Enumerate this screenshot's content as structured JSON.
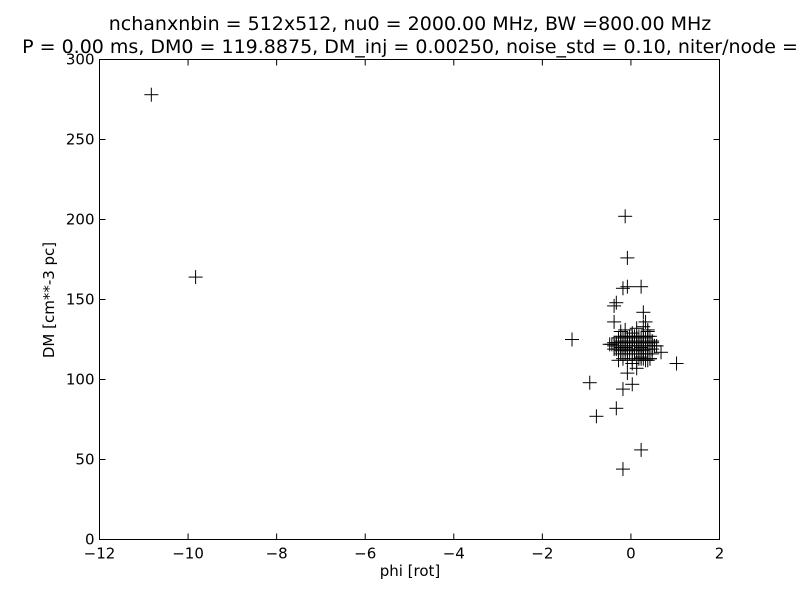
{
  "chart_data": {
    "type": "scatter",
    "title_line1": "nchanxnbin = 512x512, nu0 = 2000.00 MHz, BW =800.00 MHz",
    "title_line2": "P = 0.00 ms, DM0 = 119.8875, DM_inj = 0.00250, noise_std = 0.10, niter/node =",
    "xlabel": "phi [rot]",
    "ylabel": "DM [cm**-3 pc]",
    "xlim": [
      -12,
      2
    ],
    "ylim": [
      0,
      300
    ],
    "xticks": [
      -12,
      -10,
      -8,
      -6,
      -4,
      -2,
      0,
      2
    ],
    "xtick_labels": [
      "−12",
      "−10",
      "−8",
      "−6",
      "−4",
      "−2",
      "0",
      "2"
    ],
    "yticks": [
      0,
      50,
      100,
      150,
      200,
      250,
      300
    ],
    "ytick_labels": [
      "0",
      "50",
      "100",
      "150",
      "200",
      "250",
      "300"
    ],
    "marker": "+",
    "marker_color": "#000000",
    "grid": false,
    "series": [
      {
        "x": [
          -10.83,
          -9.83,
          -1.33,
          -0.93,
          -0.78,
          -0.33,
          -0.18,
          -0.18,
          -0.13,
          1.03,
          0.23,
          -0.38,
          -0.33,
          -0.38,
          -0.18,
          -0.08,
          0.23,
          0.28,
          0.33,
          0.38,
          0.43,
          0.48,
          0.53,
          0.68,
          -0.08,
          0.03,
          0.13,
          0.18,
          0.23,
          0.28,
          0.33,
          0.38,
          0.43,
          -0.48,
          -0.43,
          -0.38,
          -0.33,
          -0.28,
          -0.23,
          -0.18,
          -0.13,
          -0.08,
          -0.03,
          0.03,
          0.08,
          0.13,
          0.18,
          0.23,
          0.28,
          0.33,
          0.38,
          0.43,
          0.48,
          0.53,
          0.58,
          -0.38,
          -0.33,
          -0.28,
          -0.23,
          -0.18,
          -0.13,
          -0.08,
          -0.03,
          0.03,
          0.08,
          0.13,
          0.18,
          0.23,
          0.28,
          0.33,
          0.38,
          0.43,
          0.48,
          -0.38,
          -0.33,
          -0.28,
          -0.23,
          -0.18,
          -0.13,
          -0.08,
          -0.03,
          0.03,
          0.08,
          0.13,
          0.18,
          0.23,
          0.28,
          0.33,
          0.38,
          0.43,
          0.48,
          -0.28,
          -0.23,
          -0.18,
          -0.13,
          -0.08,
          -0.03,
          0.03,
          0.08,
          0.13,
          0.18,
          0.23,
          0.28,
          0.33,
          0.38,
          -0.23,
          -0.13,
          -0.03,
          0.08,
          0.18,
          0.28,
          0.38,
          0.48,
          -0.28,
          -0.18,
          -0.08,
          0.03,
          0.13,
          0.23,
          0.33,
          0.43,
          -0.23,
          -0.13,
          0.03,
          0.13,
          0.28,
          0.38,
          0.03,
          -0.08
        ],
        "y": [
          278,
          164,
          125,
          98,
          77,
          82,
          94,
          44,
          202,
          110,
          56,
          136,
          148,
          146,
          157,
          176,
          158,
          142,
          136,
          131,
          127,
          124,
          121,
          117,
          158,
          97,
          107,
          113,
          114,
          113,
          116,
          112,
          113,
          122,
          122,
          121,
          121,
          121,
          120,
          121,
          120,
          121,
          121,
          121,
          121,
          121,
          121,
          120,
          121,
          121,
          121,
          121,
          121,
          121,
          121,
          119,
          119,
          119,
          118,
          119,
          119,
          118,
          119,
          119,
          119,
          118,
          119,
          119,
          118,
          119,
          119,
          119,
          119,
          123,
          123,
          123,
          124,
          123,
          123,
          124,
          123,
          123,
          123,
          124,
          123,
          123,
          124,
          123,
          123,
          123,
          123,
          126,
          127,
          126,
          127,
          126,
          127,
          126,
          127,
          126,
          127,
          126,
          127,
          126,
          127,
          116,
          116,
          116,
          116,
          116,
          116,
          116,
          116,
          112,
          113,
          112,
          113,
          112,
          113,
          112,
          113,
          130,
          131,
          129,
          132,
          133,
          130,
          110,
          104
        ]
      }
    ]
  }
}
